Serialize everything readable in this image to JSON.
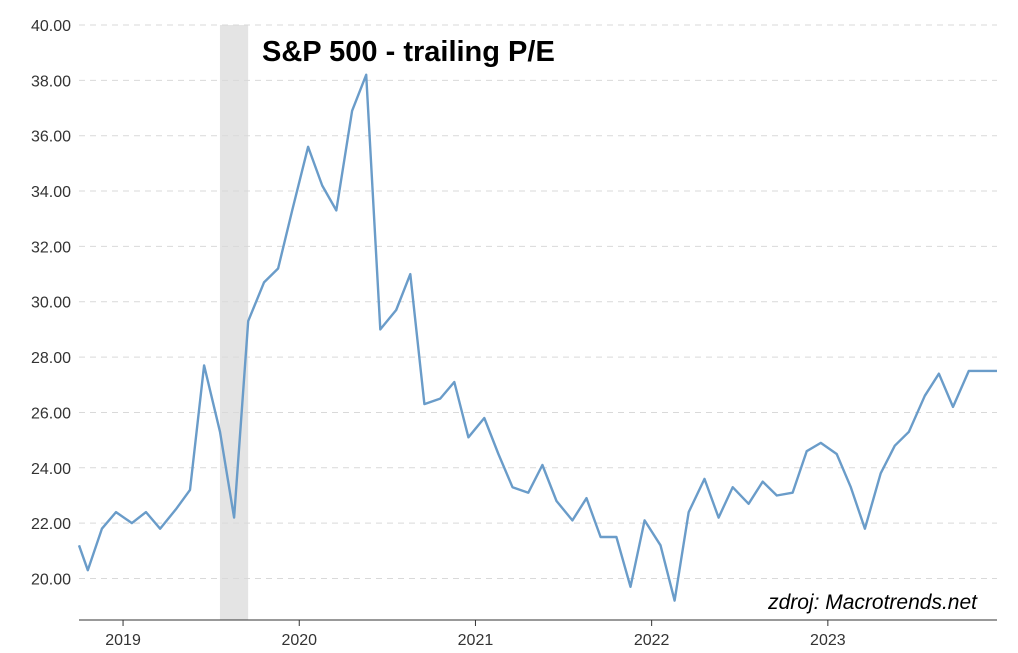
{
  "chart_data": {
    "type": "line",
    "title": "S&P 500 - trailing P/E",
    "source_note": "zdroj: Macrotrends.net",
    "xlabel": "",
    "ylabel": "",
    "ylim": [
      18.5,
      40.0
    ],
    "y_ticks": [
      20,
      22,
      24,
      26,
      28,
      30,
      32,
      34,
      36,
      38,
      40
    ],
    "y_tick_labels": [
      "20.00",
      "22.00",
      "24.00",
      "26.00",
      "28.00",
      "30.00",
      "32.00",
      "34.00",
      "36.00",
      "38.00",
      "40.00"
    ],
    "x_range": [
      2018.75,
      2023.96
    ],
    "x_ticks": [
      2019,
      2020,
      2021,
      2022,
      2023
    ],
    "x_tick_labels": [
      "2019",
      "2020",
      "2021",
      "2022",
      "2023"
    ],
    "grid": {
      "horizontal": true,
      "style": "dashed"
    },
    "colors": {
      "line": "#6a9cc9",
      "recession": "#e4e4e4",
      "grid": "#d9d9d9",
      "axis": "#333333"
    },
    "shaded_regions": [
      {
        "x_start": 2019.55,
        "x_end": 2019.71
      }
    ],
    "series": [
      {
        "x": [
          2018.75,
          2018.8,
          2018.88,
          2018.96,
          2019.05,
          2019.13,
          2019.21,
          2019.3,
          2019.38,
          2019.46,
          2019.55,
          2019.63,
          2019.71,
          2019.8,
          2019.88,
          2019.96,
          2020.05,
          2020.13,
          2020.21,
          2020.3,
          2020.38,
          2020.46,
          2020.55,
          2020.63,
          2020.71,
          2020.8,
          2020.88,
          2020.96,
          2021.05,
          2021.13,
          2021.21,
          2021.3,
          2021.38,
          2021.46,
          2021.55,
          2021.63,
          2021.71,
          2021.8,
          2021.88,
          2021.96,
          2022.05,
          2022.13,
          2022.21,
          2022.3,
          2022.38,
          2022.46,
          2022.55,
          2022.63,
          2022.71,
          2022.8,
          2022.88,
          2022.96,
          2023.05,
          2023.13,
          2023.21,
          2023.3,
          2023.38,
          2023.46,
          2023.55,
          2023.63,
          2023.71,
          2023.8,
          2023.88,
          2023.96
        ],
        "values": [
          21.2,
          20.3,
          21.8,
          22.4,
          22.0,
          22.4,
          21.8,
          22.5,
          23.2,
          27.7,
          25.3,
          22.2,
          29.3,
          30.7,
          31.2,
          33.3,
          35.6,
          34.2,
          33.3,
          36.9,
          38.2,
          29.0,
          29.7,
          31.0,
          26.3,
          26.5,
          27.1,
          25.1,
          25.8,
          24.5,
          23.3,
          23.1,
          24.1,
          22.8,
          22.1,
          22.9,
          21.5,
          21.5,
          19.7,
          22.1,
          21.2,
          19.2,
          22.4,
          23.6,
          22.2,
          23.3,
          22.7,
          23.5,
          23.0,
          23.1,
          24.6,
          24.9,
          24.5,
          23.3,
          21.8,
          23.8,
          24.8,
          25.3,
          26.6,
          27.4,
          26.2,
          27.5,
          27.5,
          27.5
        ]
      }
    ]
  }
}
